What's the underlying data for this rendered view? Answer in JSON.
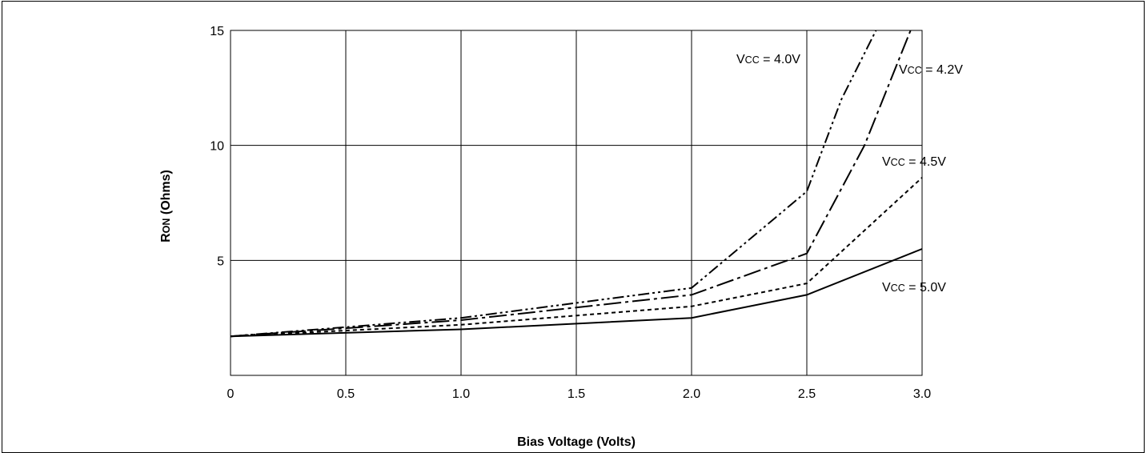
{
  "chart_data": {
    "type": "line",
    "title": "",
    "xlabel": "Bias Voltage (Volts)",
    "ylabel_main": "R",
    "ylabel_sub": "ON",
    "ylabel_rest": " (Ohms)",
    "xlim": [
      0,
      3.0
    ],
    "ylim": [
      0,
      15
    ],
    "x_ticks": [
      {
        "value": 0,
        "label": "0"
      },
      {
        "value": 0.5,
        "label": "0.5"
      },
      {
        "value": 1.0,
        "label": "1.0"
      },
      {
        "value": 1.5,
        "label": "1.5"
      },
      {
        "value": 2.0,
        "label": "2.0"
      },
      {
        "value": 2.5,
        "label": "2.5"
      },
      {
        "value": 3.0,
        "label": "3.0"
      }
    ],
    "y_ticks": [
      {
        "value": 5,
        "label": "5"
      },
      {
        "value": 10,
        "label": "10"
      },
      {
        "value": 15,
        "label": "15"
      }
    ],
    "grid": true,
    "x": [
      0,
      0.5,
      1.0,
      1.5,
      2.0,
      2.5,
      3.0
    ],
    "series": [
      {
        "label_main": "V",
        "label_sub": "CC",
        "label_rest": " = 4.0V",
        "dash": "dashdotdot",
        "points": [
          [
            0,
            1.7
          ],
          [
            1.0,
            2.5
          ],
          [
            2.0,
            3.8
          ],
          [
            2.5,
            8.0
          ],
          [
            2.65,
            12.0
          ],
          [
            2.8,
            15.0
          ]
        ]
      },
      {
        "label_main": "V",
        "label_sub": "CC",
        "label_rest": " = 4.2V",
        "dash": "longdash",
        "points": [
          [
            0,
            1.7
          ],
          [
            1.0,
            2.4
          ],
          [
            2.0,
            3.5
          ],
          [
            2.5,
            5.3
          ],
          [
            2.75,
            10.0
          ],
          [
            2.95,
            15.0
          ]
        ]
      },
      {
        "label_main": "V",
        "label_sub": "CC",
        "label_rest": " = 4.5V",
        "dash": "dotted",
        "points": [
          [
            0,
            1.7
          ],
          [
            1.0,
            2.2
          ],
          [
            2.0,
            3.0
          ],
          [
            2.5,
            4.0
          ],
          [
            3.0,
            8.6
          ]
        ]
      },
      {
        "label_main": "V",
        "label_sub": "CC",
        "label_rest": " = 5.0V",
        "dash": "solid",
        "points": [
          [
            0,
            1.7
          ],
          [
            1.0,
            2.0
          ],
          [
            2.0,
            2.5
          ],
          [
            2.5,
            3.5
          ],
          [
            3.0,
            5.5
          ]
        ]
      }
    ]
  }
}
